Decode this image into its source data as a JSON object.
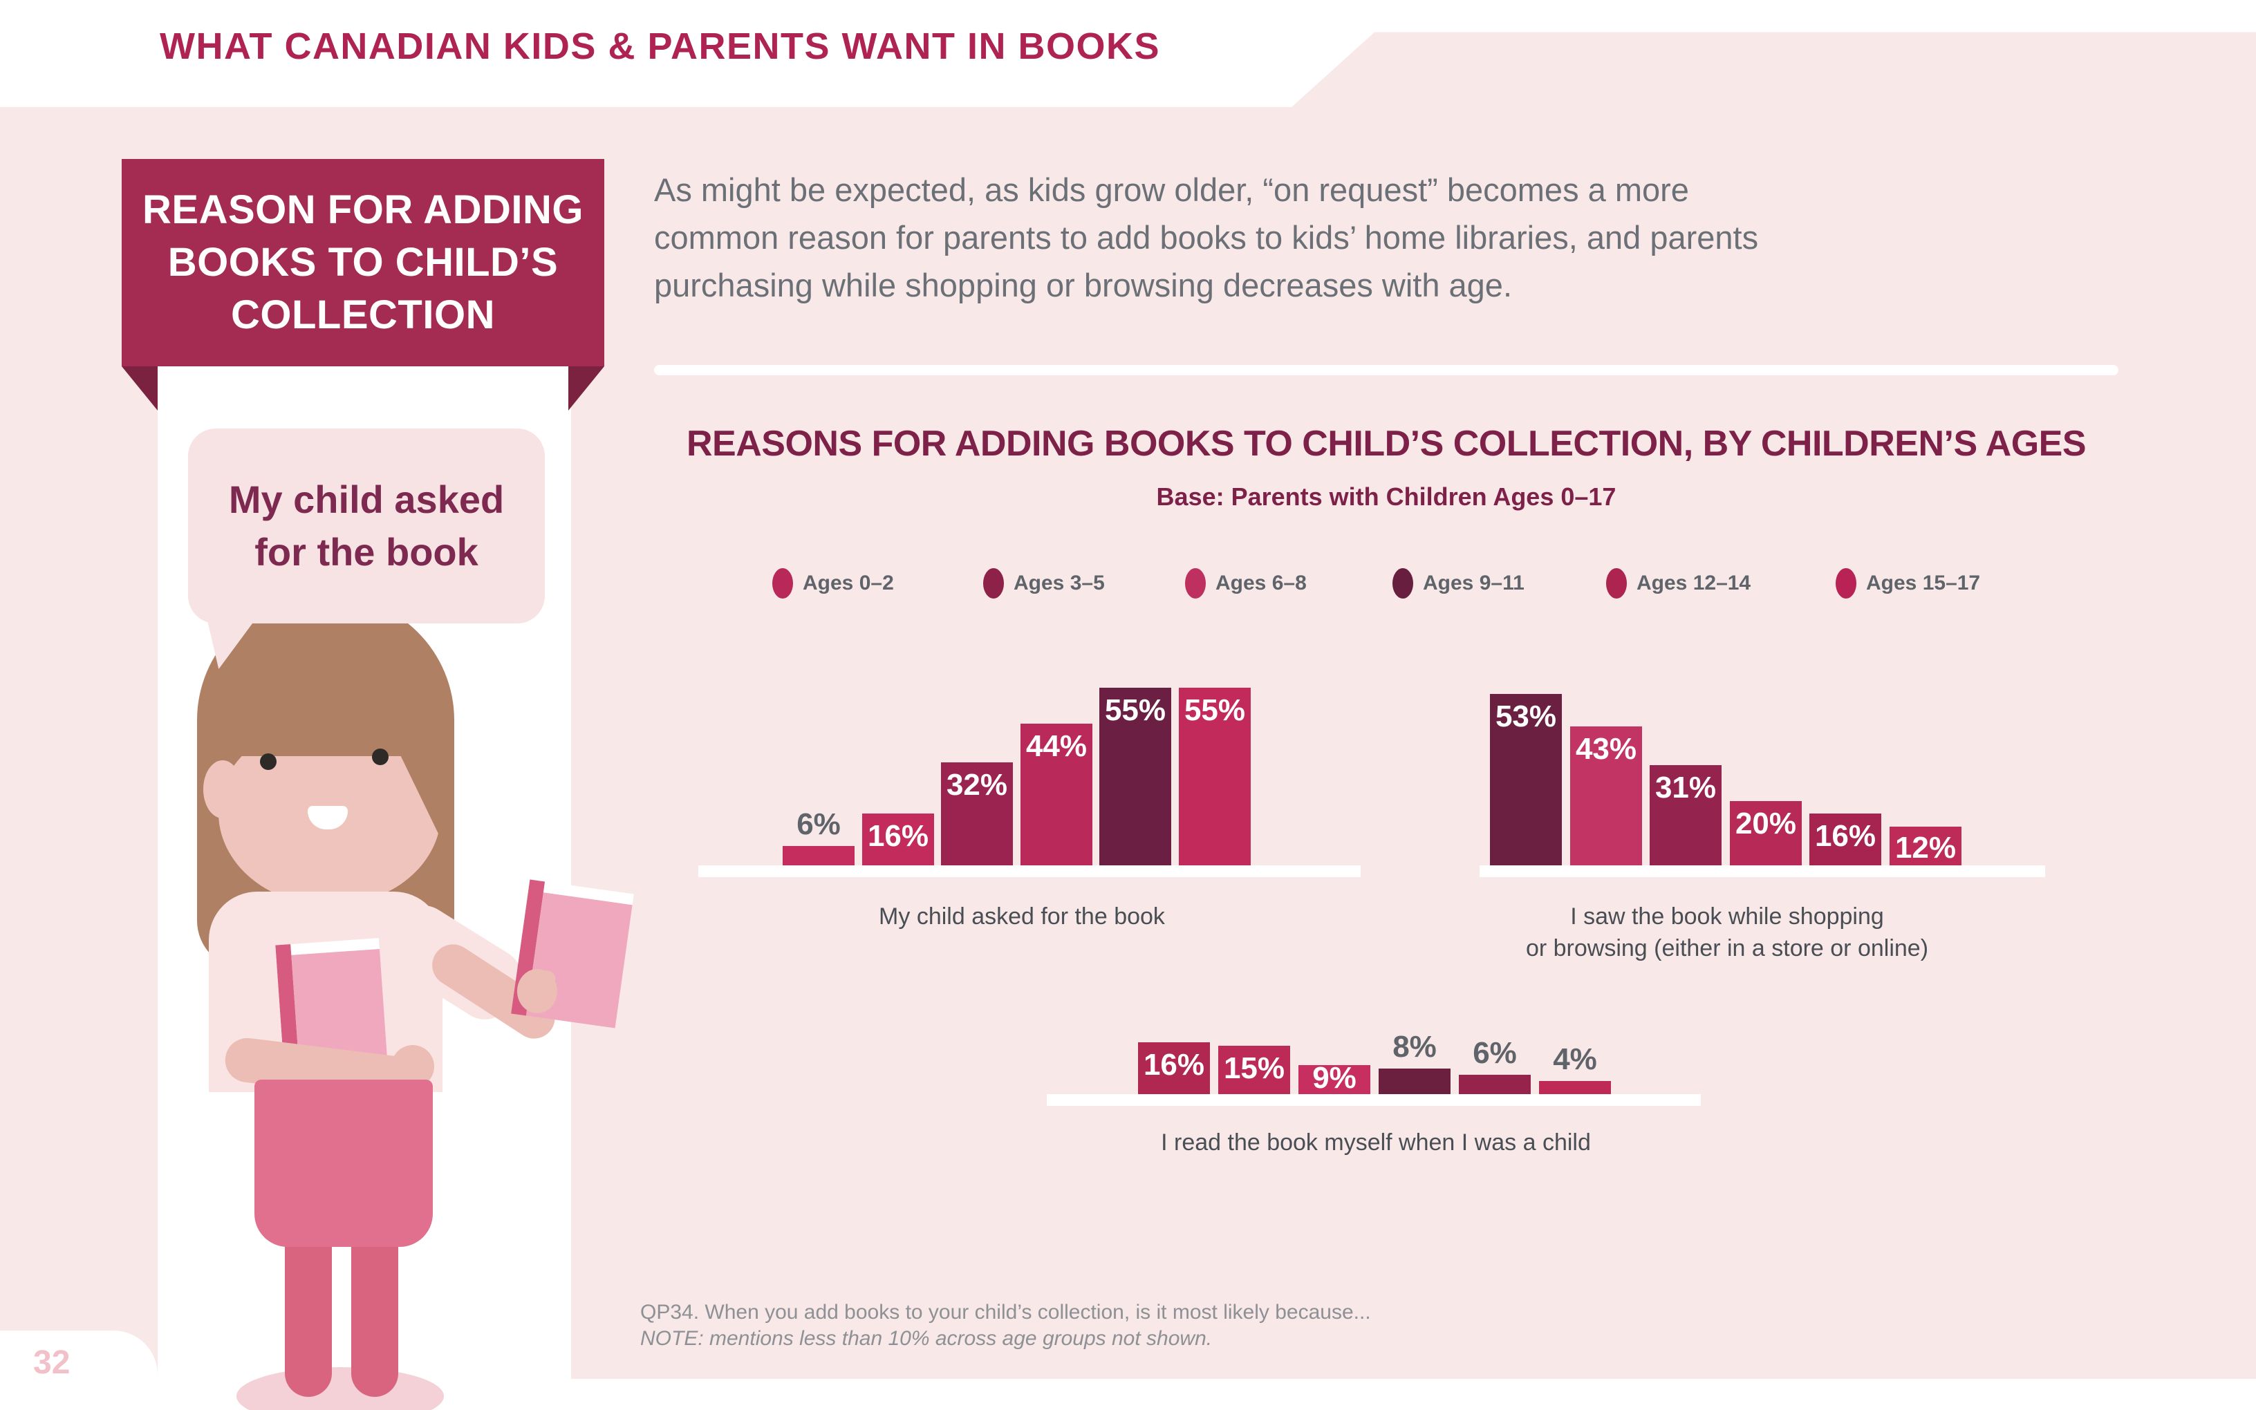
{
  "colors": {
    "page_background": "#F9E8E8",
    "header_title": "#AE2352",
    "ribbon_background": "#A42C52",
    "ribbon_fold": "#7B2240",
    "speech_bubble_background": "#F7E3E4",
    "speech_bubble_text": "#7E2A50",
    "intro_text": "#6B7076",
    "chart_heading": "#7E2149",
    "gray_label": "#5F646A",
    "caption_text": "#494E54",
    "footnote_text": "#8D9094",
    "page_number": "#F2C0C8",
    "baseline_white": "#FFFFFF"
  },
  "header": {
    "title": "WHAT CANADIAN KIDS & PARENTS WANT IN BOOKS"
  },
  "sidebar": {
    "ribbon_lines": [
      "REASON FOR ADDING",
      "BOOKS TO CHILD’S",
      "COLLECTION"
    ],
    "speech_bubble_lines": [
      "My child asked",
      "for the book"
    ],
    "illustration": "girl-holding-two-pink-books"
  },
  "intro": {
    "lines": [
      "As might be expected, as kids grow older, “on request” becomes a more",
      "common reason for parents to add books to kids’ home libraries, and parents",
      "purchasing while shopping or browsing decreases with age."
    ]
  },
  "footnote": {
    "line1": "QP34. When you add books to your child’s collection, is it most likely because...",
    "line2": "NOTE: mentions less than 10% across age groups not shown."
  },
  "page_number": "32",
  "chart_data": {
    "type": "bar",
    "title": "REASONS FOR ADDING BOOKS TO CHILD’S COLLECTION, BY CHILDREN’S AGES",
    "subtitle": "Base: Parents with Children Ages 0–17",
    "unit": "%",
    "ylim": [
      0,
      60
    ],
    "grid": false,
    "legend_position": "top",
    "legend": [
      {
        "label": "Ages 0–2",
        "color": "#B8295A"
      },
      {
        "label": "Ages 3–5",
        "color": "#8D2147"
      },
      {
        "label": "Ages 6–8",
        "color": "#BE3060"
      },
      {
        "label": "Ages 9–11",
        "color": "#681E3F"
      },
      {
        "label": "Ages 12–14",
        "color": "#AD2451"
      },
      {
        "label": "Ages 15–17",
        "color": "#B82254"
      }
    ],
    "categories": [
      "Ages 0–2",
      "Ages 3–5",
      "Ages 6–8",
      "Ages 9–11",
      "Ages 12–14",
      "Ages 15–17"
    ],
    "groups": [
      {
        "caption_lines": [
          "My child asked for the book"
        ],
        "bars": [
          {
            "age": "Ages 0–2",
            "value": 6,
            "color": "#C52D5E",
            "label_position": "above"
          },
          {
            "age": "Ages 3–5",
            "value": 16,
            "color": "#C22B5B",
            "label_position": "inside"
          },
          {
            "age": "Ages 6–8",
            "value": 32,
            "color": "#9B2350",
            "label_position": "inside"
          },
          {
            "age": "Ages 9–11",
            "value": 44,
            "color": "#B9295A",
            "label_position": "inside"
          },
          {
            "age": "Ages 12–14",
            "value": 55,
            "color": "#6B1F42",
            "label_position": "inside"
          },
          {
            "age": "Ages 15–17",
            "value": 55,
            "color": "#C22A5C",
            "label_position": "inside"
          }
        ]
      },
      {
        "caption_lines": [
          "I saw the book while shopping",
          "or browsing (either in a store or online)"
        ],
        "bars": [
          {
            "age": "Ages 0–2",
            "value": 53,
            "color": "#6B2042",
            "label_position": "inside"
          },
          {
            "age": "Ages 3–5",
            "value": 43,
            "color": "#C23463",
            "label_position": "inside"
          },
          {
            "age": "Ages 6–8",
            "value": 31,
            "color": "#94234D",
            "label_position": "inside"
          },
          {
            "age": "Ages 9–11",
            "value": 20,
            "color": "#B72A57",
            "label_position": "inside"
          },
          {
            "age": "Ages 12–14",
            "value": 16,
            "color": "#A72450",
            "label_position": "inside"
          },
          {
            "age": "Ages 15–17",
            "value": 12,
            "color": "#BE2B59",
            "label_position": "inside"
          }
        ]
      },
      {
        "caption_lines": [
          "I read the book myself when I was a child"
        ],
        "bars": [
          {
            "age": "Ages 0–2",
            "value": 16,
            "color": "#B02752",
            "label_position": "inside"
          },
          {
            "age": "Ages 3–5",
            "value": 15,
            "color": "#BC2B58",
            "label_position": "inside"
          },
          {
            "age": "Ages 6–8",
            "value": 9,
            "color": "#C72F60",
            "label_position": "inside"
          },
          {
            "age": "Ages 9–11",
            "value": 8,
            "color": "#6B2040",
            "label_position": "above"
          },
          {
            "age": "Ages 12–14",
            "value": 6,
            "color": "#96234B",
            "label_position": "above"
          },
          {
            "age": "Ages 15–17",
            "value": 4,
            "color": "#BE2955",
            "label_position": "above"
          }
        ]
      }
    ]
  }
}
